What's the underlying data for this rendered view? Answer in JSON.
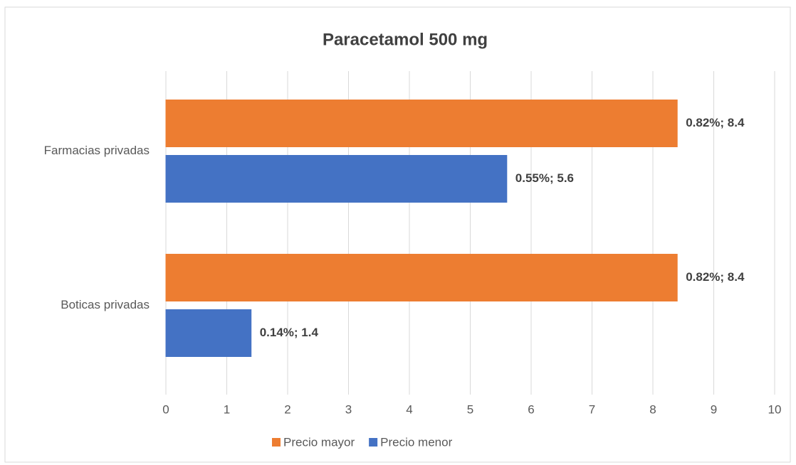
{
  "chart_data": {
    "type": "bar",
    "orientation": "horizontal",
    "title": "Paracetamol 500 mg",
    "categories": [
      "Farmacias privadas",
      "Boticas privadas"
    ],
    "series": [
      {
        "name": "Precio mayor",
        "color": "#ed7d31",
        "values": [
          8.4,
          8.4
        ],
        "value_labels": [
          "0.82%; 8.4",
          "0.82%; 8.4"
        ]
      },
      {
        "name": "Precio menor",
        "color": "#4472c4",
        "values": [
          5.6,
          1.4
        ],
        "value_labels": [
          "0.55%; 5.6",
          "0.14%; 1.4"
        ]
      }
    ],
    "xlim": [
      0,
      10
    ],
    "xticks": [
      0,
      1,
      2,
      3,
      4,
      5,
      6,
      7,
      8,
      9,
      10
    ],
    "grid": true,
    "legend": "bottom"
  }
}
